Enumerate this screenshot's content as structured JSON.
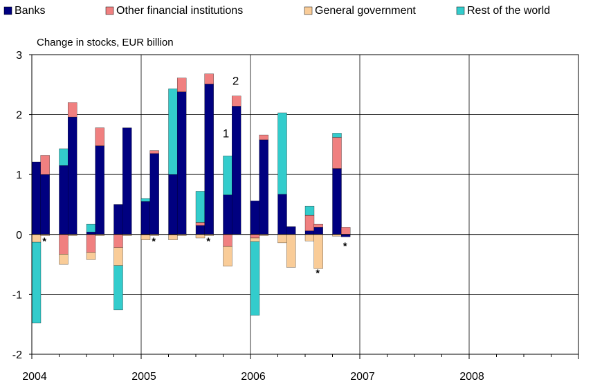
{
  "chart_data": {
    "type": "bar",
    "stacked": true,
    "title": "Change in stocks, EUR billion",
    "ylim": [
      -2,
      3
    ],
    "yticks": [
      -2,
      -1,
      0,
      1,
      2,
      3
    ],
    "ytick_labels": [
      "-2",
      "-1",
      "0",
      "1",
      "2",
      "3"
    ],
    "xlim": [
      2004,
      2009
    ],
    "xtick_labels": [
      {
        "value": 2004,
        "label": "2004"
      },
      {
        "value": 2005,
        "label": "2005"
      },
      {
        "value": 2006,
        "label": "2006"
      },
      {
        "value": 2007,
        "label": "2007"
      },
      {
        "value": 2008,
        "label": "2008"
      }
    ],
    "grid": true,
    "legend_position": "top",
    "series": [
      {
        "name": "Banks",
        "color": "#000080"
      },
      {
        "name": "Other financial institutions",
        "color": "#F08080"
      },
      {
        "name": "General government",
        "color": "#F9CC98"
      },
      {
        "name": "Rest of the world",
        "color": "#33CCCC"
      }
    ],
    "bars": [
      {
        "x": 2004.0,
        "values": [
          1.21,
          0.0,
          -0.13,
          -1.35
        ]
      },
      {
        "x": 2004.08,
        "values": [
          1.0,
          0.32,
          -0.02,
          0.0
        ]
      },
      {
        "x": 2004.25,
        "values": [
          1.15,
          -0.33,
          -0.17,
          0.28
        ]
      },
      {
        "x": 2004.33,
        "values": [
          1.96,
          0.24,
          -0.02,
          0.0
        ]
      },
      {
        "x": 2004.5,
        "values": [
          0.04,
          -0.3,
          -0.12,
          0.13
        ]
      },
      {
        "x": 2004.58,
        "values": [
          1.48,
          0.3,
          -0.02,
          0.0
        ]
      },
      {
        "x": 2004.75,
        "values": [
          0.5,
          -0.22,
          -0.3,
          -0.74
        ]
      },
      {
        "x": 2004.83,
        "values": [
          1.78,
          0.0,
          -0.02,
          0.0
        ]
      },
      {
        "x": 2005.0,
        "values": [
          0.55,
          -0.01,
          -0.08,
          0.05
        ]
      },
      {
        "x": 2005.08,
        "values": [
          1.35,
          0.05,
          -0.02,
          0.0
        ]
      },
      {
        "x": 2005.25,
        "values": [
          1.0,
          -0.01,
          -0.08,
          1.43
        ]
      },
      {
        "x": 2005.33,
        "values": [
          2.38,
          0.23,
          -0.02,
          0.0
        ]
      },
      {
        "x": 2005.5,
        "values": [
          0.15,
          0.05,
          -0.06,
          0.52
        ]
      },
      {
        "x": 2005.58,
        "values": [
          2.51,
          0.17,
          -0.02,
          0.0
        ]
      },
      {
        "x": 2005.75,
        "values": [
          0.66,
          -0.2,
          -0.33,
          0.65
        ]
      },
      {
        "x": 2005.83,
        "values": [
          2.14,
          0.17,
          0.0,
          0.0
        ]
      },
      {
        "x": 2006.0,
        "values": [
          0.56,
          -0.06,
          -0.06,
          -1.23
        ]
      },
      {
        "x": 2006.08,
        "values": [
          1.58,
          0.08,
          -0.02,
          0.0
        ]
      },
      {
        "x": 2006.25,
        "values": [
          0.67,
          0.0,
          -0.14,
          1.36
        ]
      },
      {
        "x": 2006.33,
        "values": [
          0.13,
          0.0,
          -0.55,
          0.0
        ]
      },
      {
        "x": 2006.5,
        "values": [
          0.06,
          0.26,
          -0.11,
          0.15
        ]
      },
      {
        "x": 2006.58,
        "values": [
          0.12,
          0.05,
          -0.57,
          0.0
        ]
      },
      {
        "x": 2006.75,
        "values": [
          1.1,
          0.52,
          -0.03,
          0.07
        ]
      },
      {
        "x": 2006.83,
        "values": [
          -0.04,
          0.12,
          0.0,
          0.0
        ]
      }
    ],
    "annotations": [
      {
        "text": "*",
        "x": 2004.115,
        "y": -0.17
      },
      {
        "text": "*",
        "x": 2005.115,
        "y": -0.17
      },
      {
        "text": "*",
        "x": 2005.615,
        "y": -0.17
      },
      {
        "text": "1",
        "x": 2005.775,
        "y": 1.62
      },
      {
        "text": "2",
        "x": 2005.865,
        "y": 2.5
      },
      {
        "text": "*",
        "x": 2006.615,
        "y": -0.7
      },
      {
        "text": "*",
        "x": 2006.865,
        "y": -0.25
      }
    ]
  }
}
